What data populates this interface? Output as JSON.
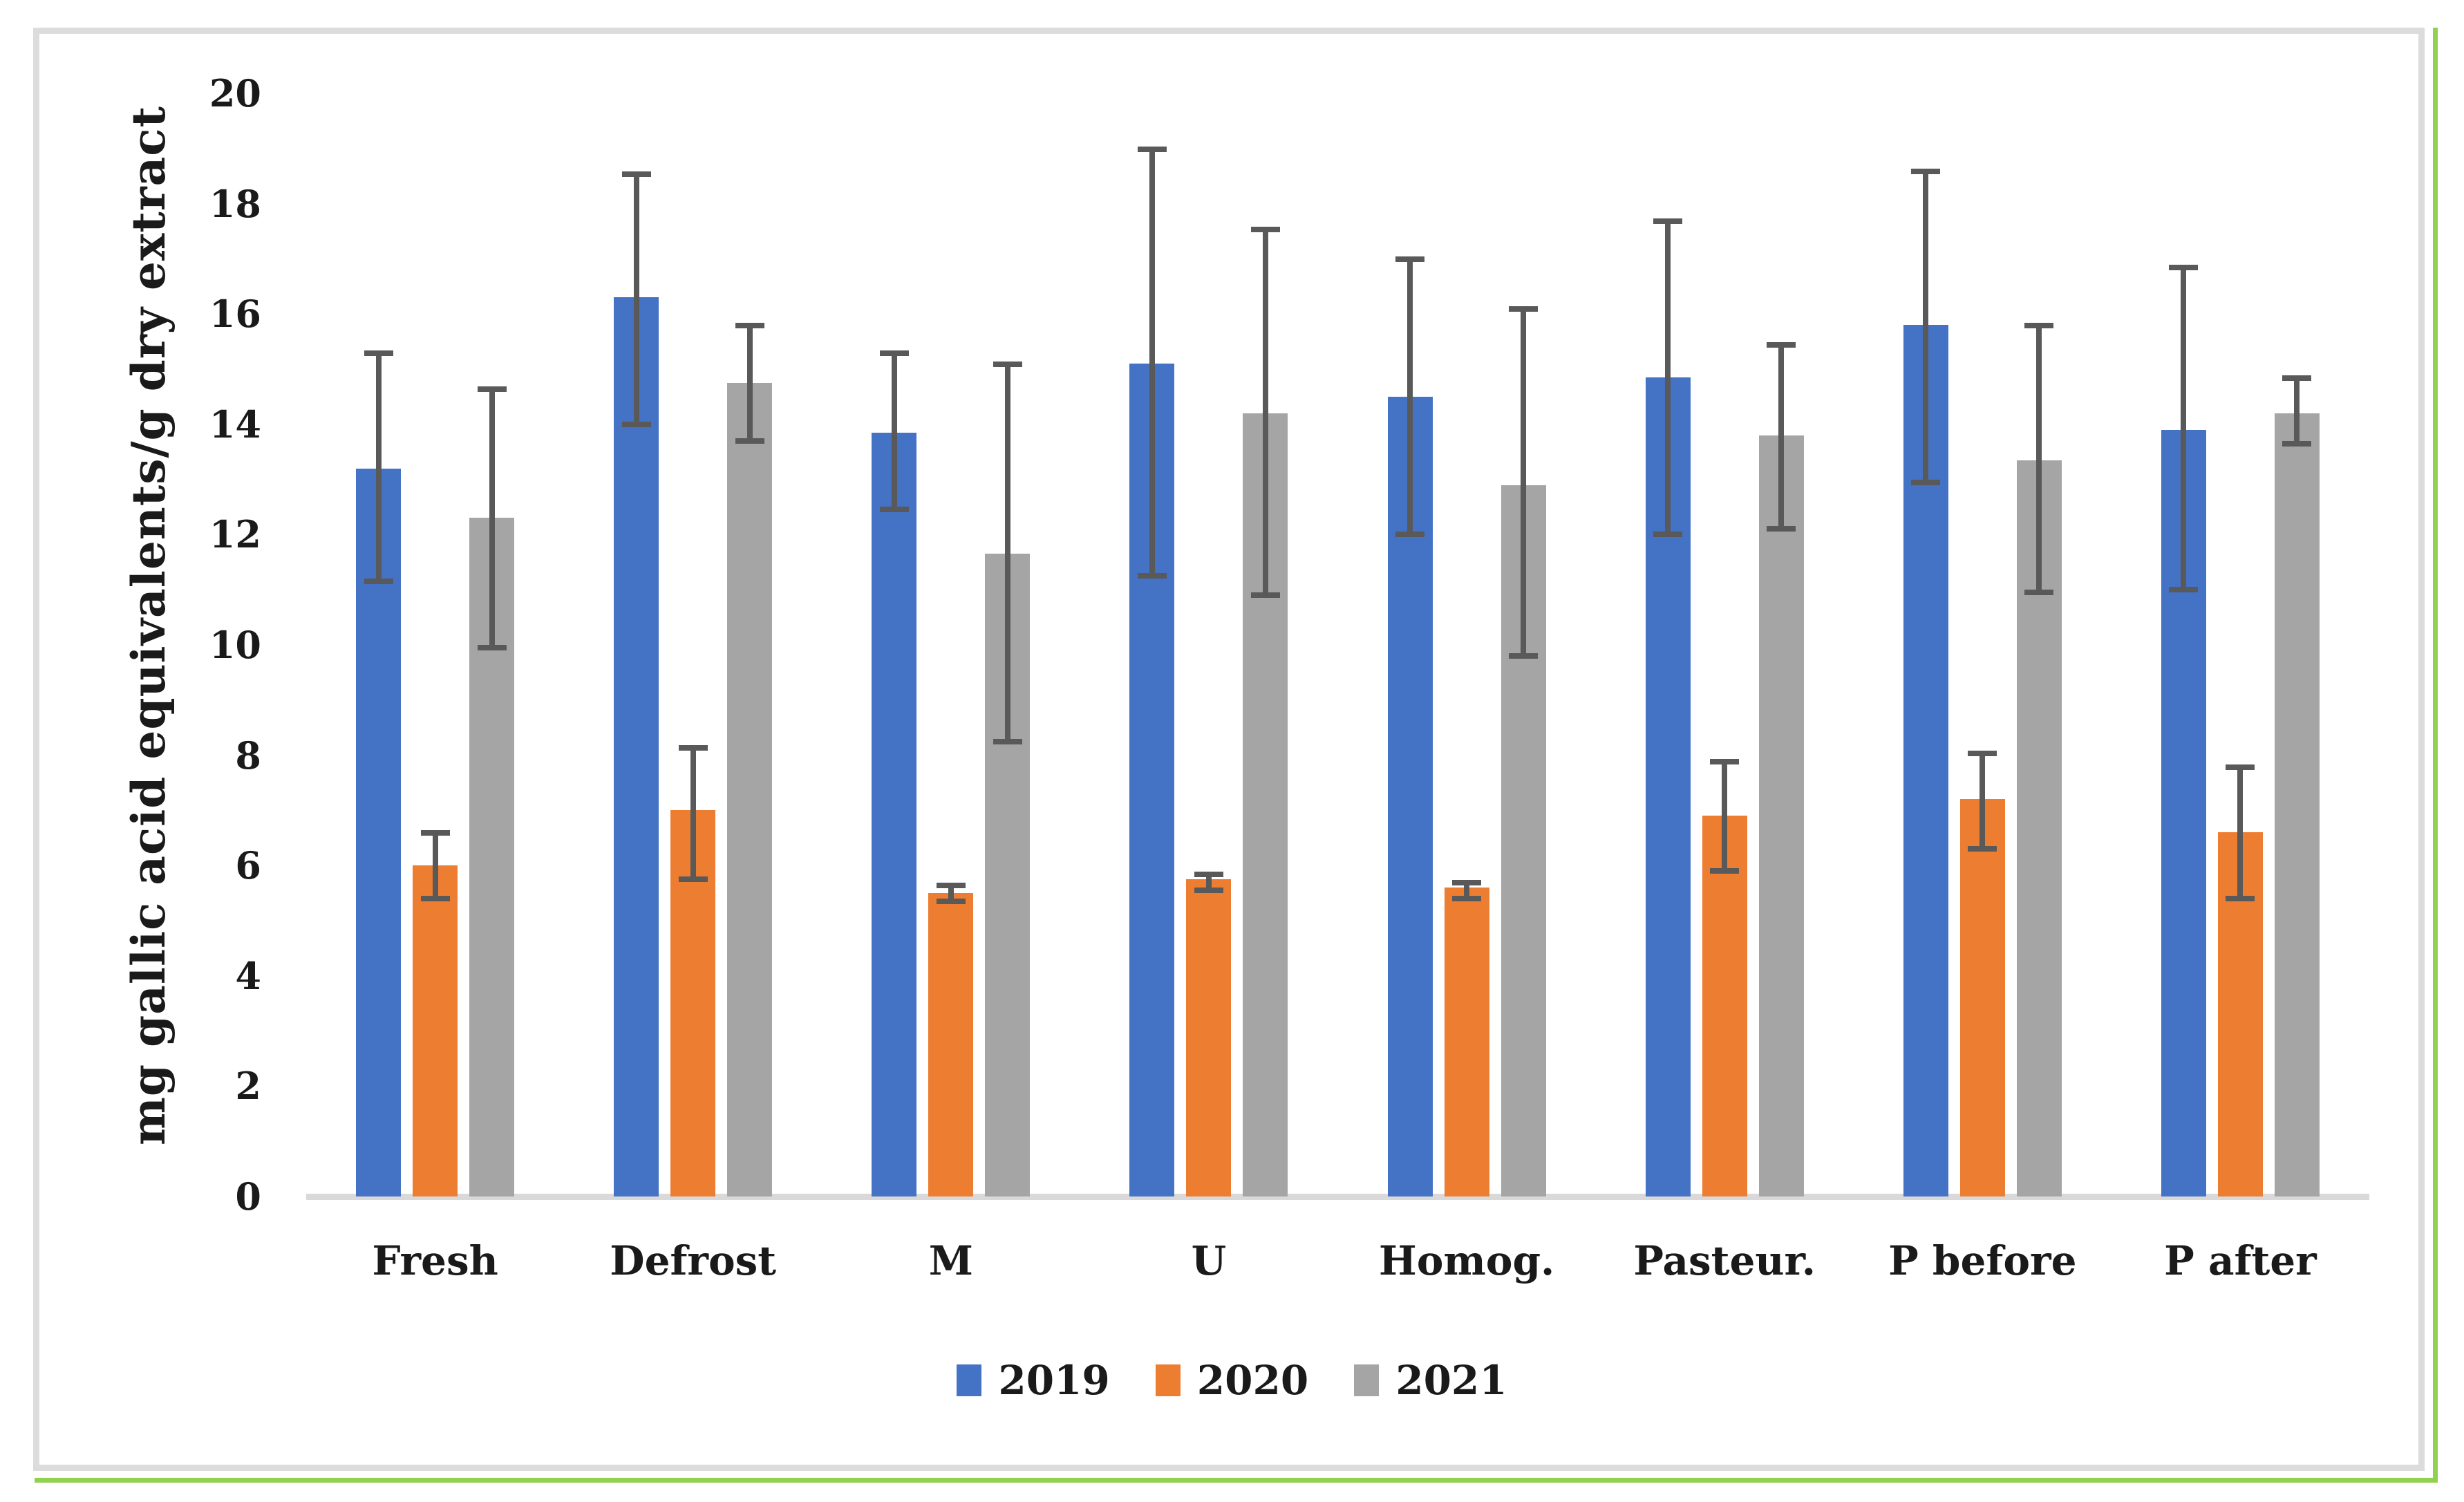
{
  "figure": {
    "background": "#FFFFFF",
    "border_color": "#DCDCDC",
    "accent_line_color": "#92D050"
  },
  "chart_data": {
    "type": "bar",
    "title": "",
    "xlabel": "",
    "ylabel": "mg gallic acid equivalents/g dry extract",
    "ylim": [
      0,
      20
    ],
    "yticks": [
      0,
      2,
      4,
      6,
      8,
      10,
      12,
      14,
      16,
      18,
      20
    ],
    "grid": false,
    "legend_position": "bottom-center",
    "error_bars": true,
    "error_bar_color": "#595959",
    "baseline_color": "#D9D9D9",
    "categories": [
      "Fresh",
      "Defrost",
      "M",
      "U",
      "Homog.",
      "Pasteur.",
      "P before",
      "P after"
    ],
    "series": [
      {
        "name": "2019",
        "color": "#4472C4",
        "values": [
          13.2,
          16.3,
          13.85,
          15.1,
          14.5,
          14.85,
          15.8,
          13.9
        ],
        "err_low": [
          11.15,
          14.0,
          12.45,
          11.25,
          12.0,
          12.0,
          12.95,
          11.0
        ],
        "err_high": [
          15.3,
          18.55,
          15.3,
          19.0,
          17.0,
          17.7,
          18.6,
          16.85
        ]
      },
      {
        "name": "2020",
        "color": "#ED7D31",
        "values": [
          6.0,
          7.0,
          5.5,
          5.75,
          5.6,
          6.9,
          7.2,
          6.6
        ],
        "err_low": [
          5.4,
          5.75,
          5.35,
          5.55,
          5.4,
          5.9,
          6.3,
          5.4
        ],
        "err_high": [
          6.6,
          8.15,
          5.65,
          5.85,
          5.7,
          7.9,
          8.05,
          7.8
        ]
      },
      {
        "name": "2021",
        "color": "#A5A5A5",
        "values": [
          12.3,
          14.75,
          11.65,
          14.2,
          12.9,
          13.8,
          13.35,
          14.2
        ],
        "err_low": [
          9.95,
          13.7,
          8.25,
          10.9,
          9.8,
          12.1,
          10.95,
          13.65
        ],
        "err_high": [
          14.65,
          15.8,
          15.1,
          17.55,
          16.1,
          15.45,
          15.8,
          14.85
        ]
      }
    ]
  }
}
